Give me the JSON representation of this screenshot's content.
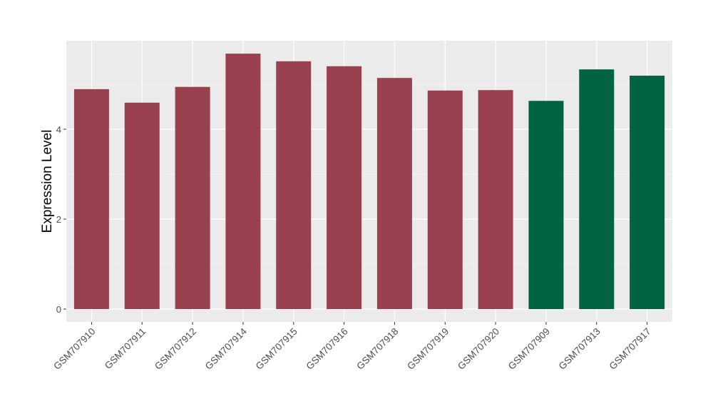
{
  "chart_data": {
    "type": "bar",
    "title": "",
    "xlabel": "",
    "ylabel": "Expression Level",
    "ylim": [
      -0.27,
      5.97
    ],
    "yticks": [
      0,
      2,
      4
    ],
    "grid": true,
    "legend": "none",
    "categories": [
      "GSM707910",
      "GSM707911",
      "GSM707912",
      "GSM707914",
      "GSM707915",
      "GSM707916",
      "GSM707918",
      "GSM707919",
      "GSM707920",
      "GSM707909",
      "GSM707913",
      "GSM707917"
    ],
    "values": [
      4.89,
      4.59,
      4.94,
      5.68,
      5.51,
      5.4,
      5.14,
      4.86,
      4.87,
      4.63,
      5.33,
      5.19
    ],
    "groups": [
      0,
      0,
      0,
      0,
      0,
      0,
      0,
      0,
      0,
      1,
      1,
      1
    ],
    "colors": [
      "#9A4150",
      "#006443"
    ],
    "panel_bg": "#EBEBEB"
  }
}
